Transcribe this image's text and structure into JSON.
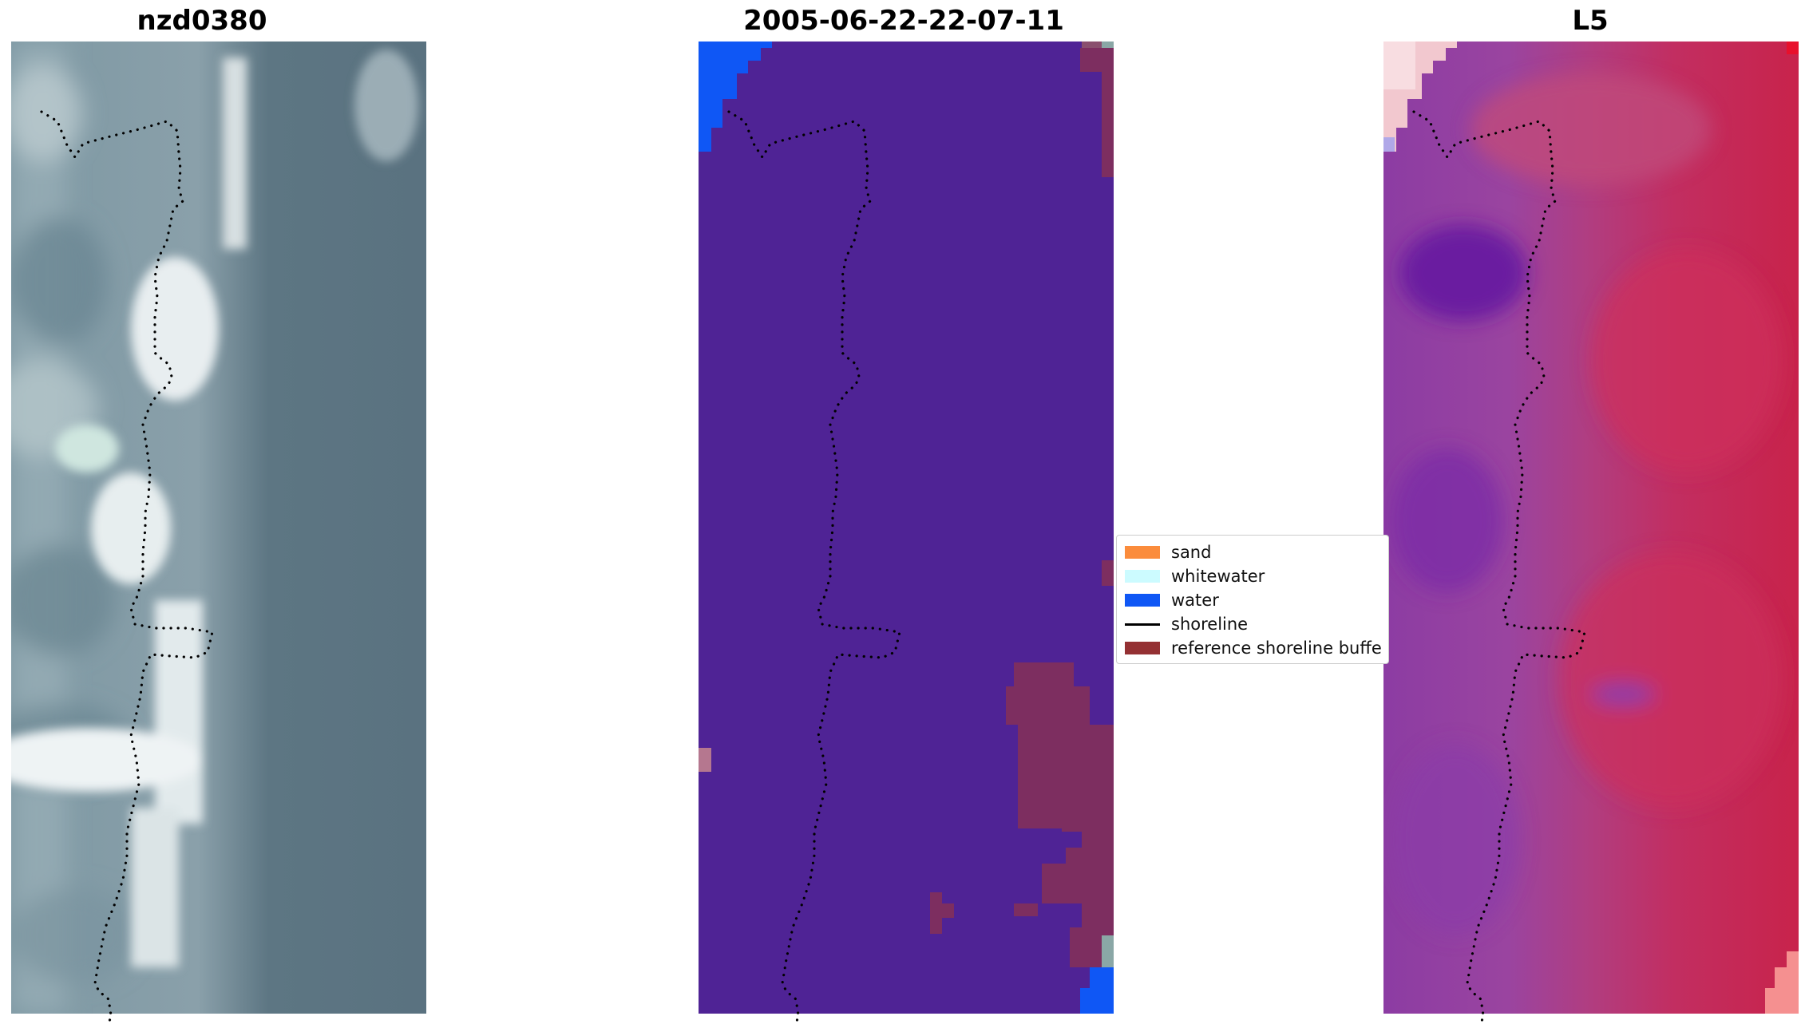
{
  "panels": [
    {
      "title": "nzd0380",
      "kind": "rgb"
    },
    {
      "title": "2005-06-22-22-07-11",
      "kind": "classification"
    },
    {
      "title": "L5",
      "kind": "index"
    }
  ],
  "legend": {
    "items": [
      {
        "label": "sand",
        "color": "#fb8c3c",
        "kind": "patch"
      },
      {
        "label": "whitewater",
        "color": "#ccfbff",
        "kind": "patch"
      },
      {
        "label": "water",
        "color": "#0f57f5",
        "kind": "patch"
      },
      {
        "label": "shoreline",
        "color": "#000000",
        "kind": "line"
      },
      {
        "label": "reference shoreline buffe",
        "color": "#943033",
        "kind": "patch"
      }
    ]
  },
  "colors": {
    "classification_background": "#4f2395",
    "buffer": "#7d2e60",
    "water": "#0f57f5",
    "rgb_land": "#a9b5bf",
    "rgb_sea": "#556f7c",
    "index_low": "#8d3aa0",
    "index_high": "#c22a55"
  }
}
